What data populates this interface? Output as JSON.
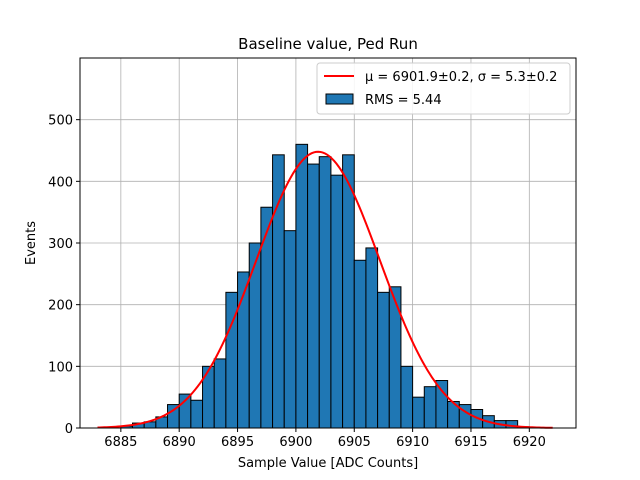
{
  "chart_data": {
    "type": "bar",
    "title": "Baseline value, Ped Run",
    "xlabel": "Sample Value [ADC Counts]",
    "ylabel": "Events",
    "xlim": [
      6881.5,
      6924.0
    ],
    "ylim": [
      0,
      600
    ],
    "xticks": [
      6885,
      6890,
      6895,
      6900,
      6905,
      6910,
      6915,
      6920
    ],
    "yticks": [
      0,
      100,
      200,
      300,
      400,
      500
    ],
    "grid": true,
    "legend_position": "top-right",
    "legend": {
      "fit_label": "μ = 6901.9±0.2, σ = 5.3±0.2",
      "hist_label": "RMS = 5.44"
    },
    "colors": {
      "bar_fill": "#1f77b4",
      "bar_edge": "#000000",
      "fit_line": "#ff0000",
      "grid": "#b0b0b0"
    },
    "histogram": {
      "bin_width": 1,
      "bin_left_edges": [
        6885,
        6886,
        6887,
        6888,
        6889,
        6890,
        6891,
        6892,
        6893,
        6894,
        6895,
        6896,
        6897,
        6898,
        6899,
        6900,
        6901,
        6902,
        6903,
        6904,
        6905,
        6906,
        6907,
        6908,
        6909,
        6910,
        6911,
        6912,
        6913,
        6914,
        6915,
        6916,
        6917,
        6918,
        6919
      ],
      "counts": [
        3,
        8,
        10,
        18,
        38,
        55,
        45,
        100,
        112,
        220,
        253,
        300,
        358,
        443,
        320,
        460,
        428,
        440,
        410,
        443,
        272,
        292,
        220,
        229,
        100,
        50,
        67,
        77,
        43,
        38,
        30,
        20,
        12,
        12,
        2
      ]
    },
    "fit": {
      "type": "gaussian",
      "mu": 6901.9,
      "sigma": 5.3,
      "amplitude": 448,
      "x_range": [
        6883,
        6922
      ]
    }
  }
}
